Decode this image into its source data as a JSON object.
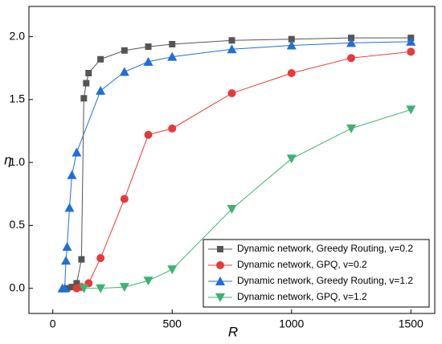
{
  "chart_data": {
    "type": "line",
    "xlabel": "R",
    "ylabel": "η",
    "xlim": [
      -100,
      1600
    ],
    "xticks": [
      0,
      500,
      1000,
      1500
    ],
    "ylim": [
      -0.2,
      2.24
    ],
    "yticks": [
      {
        "value": 0,
        "label": "0.0"
      },
      {
        "value": 0.5,
        "label": "0.5"
      },
      {
        "value": 1,
        "label": "1.0"
      },
      {
        "value": 1.5,
        "label": "1.5"
      },
      {
        "value": 2,
        "label": "2.0"
      }
    ],
    "legend": "lower right",
    "series": [
      {
        "name": "Dynamic network, Greedy Routing, v=0.2",
        "color": "#555555",
        "marker": "square",
        "x": [
          60,
          80,
          100,
          120,
          130,
          140,
          150,
          200,
          300,
          400,
          500,
          750,
          1000,
          1250,
          1500
        ],
        "values": [
          0,
          0.01,
          0.04,
          0.23,
          1.51,
          1.63,
          1.71,
          1.82,
          1.89,
          1.92,
          1.94,
          1.97,
          1.98,
          1.99,
          1.99
        ]
      },
      {
        "name": "Dynamic network, GPQ, v=0.2",
        "color": "#e8393a",
        "marker": "circle",
        "x": [
          100,
          120,
          150,
          200,
          300,
          400,
          500,
          750,
          1000,
          1250,
          1500
        ],
        "values": [
          0,
          0.01,
          0.04,
          0.24,
          0.71,
          1.22,
          1.27,
          1.55,
          1.71,
          1.83,
          1.88
        ]
      },
      {
        "name": "Dynamic network, Greedy Routing, v=1.2",
        "color": "#1f6fd6",
        "marker": "triangle-up",
        "x": [
          40,
          50,
          55,
          60,
          70,
          80,
          100,
          200,
          300,
          400,
          500,
          750,
          1000,
          1250,
          1500
        ],
        "values": [
          0,
          0,
          0.22,
          0.33,
          0.64,
          0.9,
          1.08,
          1.57,
          1.72,
          1.8,
          1.84,
          1.9,
          1.93,
          1.95,
          1.96
        ]
      },
      {
        "name": "Dynamic network, GPQ, v=1.2",
        "color": "#3cb371",
        "marker": "triangle-down",
        "x": [
          130,
          200,
          300,
          400,
          500,
          750,
          1000,
          1250,
          1500
        ],
        "values": [
          0,
          0,
          0.01,
          0.06,
          0.15,
          0.63,
          1.03,
          1.27,
          1.42
        ]
      }
    ]
  }
}
